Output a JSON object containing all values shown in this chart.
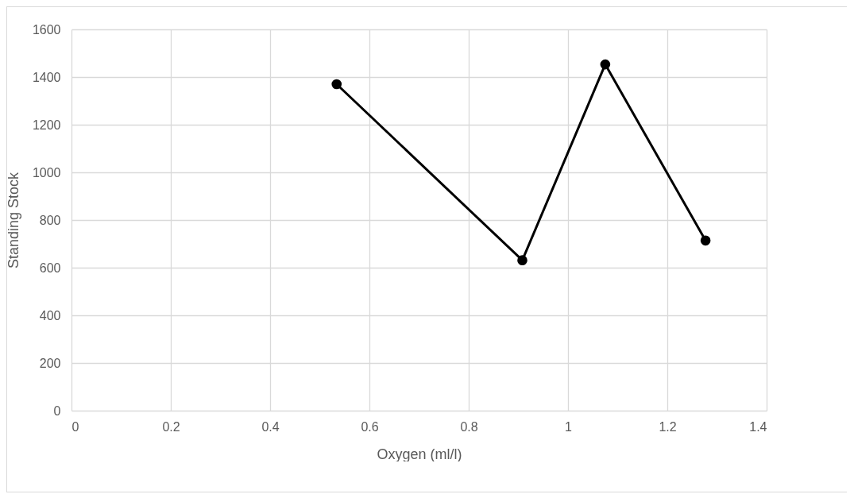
{
  "chart_data": {
    "type": "line",
    "xlabel": "Oxygen (ml/l)",
    "ylabel": "Standing Stock",
    "x": [
      0.534,
      0.908,
      1.075,
      1.277
    ],
    "series": [
      {
        "color": "#000000",
        "values": [
          1370,
          631,
          1453,
          714
        ]
      }
    ],
    "xlim": [
      0,
      1.4
    ],
    "xticks": [
      0,
      0.2,
      0.4,
      0.6,
      0.8,
      1,
      1.2,
      1.4
    ],
    "ylim": [
      0,
      1600
    ],
    "yticks": [
      0,
      200,
      400,
      600,
      800,
      1000,
      1200,
      1400,
      1600
    ],
    "grid": true,
    "marker": "circle",
    "line_style": "solid",
    "legend": false
  }
}
